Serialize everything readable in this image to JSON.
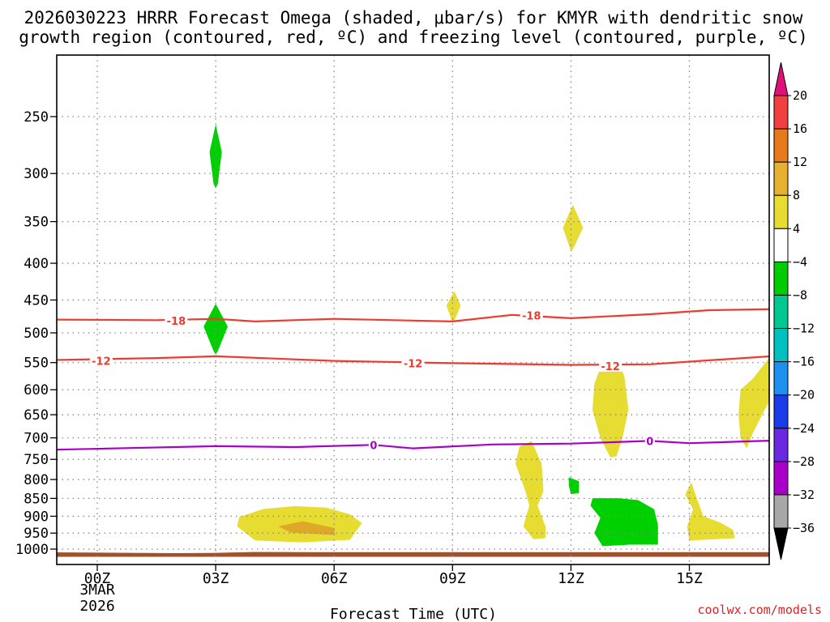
{
  "title_line1": "2026030223 HRRR Forecast Omega (shaded, μbar/s) for KMYR with dendritic snow",
  "title_line2": "growth region (contoured, red, ºC) and freezing level (contoured, purple, ºC)",
  "xaxis_label": "Forecast Time (UTC)",
  "watermark": "coolwx.com/models",
  "date_line1": "3MAR",
  "date_line2": "2026",
  "chart_data": {
    "type": "time-height cross-section",
    "x_range_hours": [
      -1.5,
      17.5
    ],
    "y_range_hPa": [
      175,
      1025
    ],
    "x_ticks": [
      {
        "h": 0,
        "label": "00Z"
      },
      {
        "h": 3,
        "label": "03Z"
      },
      {
        "h": 6,
        "label": "06Z"
      },
      {
        "h": 9,
        "label": "09Z"
      },
      {
        "h": 12,
        "label": "12Z"
      },
      {
        "h": 15,
        "label": "15Z"
      }
    ],
    "y_ticks": [
      {
        "p": 250,
        "label": "250"
      },
      {
        "p": 300,
        "label": "300"
      },
      {
        "p": 350,
        "label": "350"
      },
      {
        "p": 400,
        "label": "400"
      },
      {
        "p": 450,
        "label": "450"
      },
      {
        "p": 500,
        "label": "500"
      },
      {
        "p": 550,
        "label": "550"
      },
      {
        "p": 600,
        "label": "600"
      },
      {
        "p": 650,
        "label": "650"
      },
      {
        "p": 700,
        "label": "700"
      },
      {
        "p": 750,
        "label": "750"
      },
      {
        "p": 800,
        "label": "800"
      },
      {
        "p": 850,
        "label": "850"
      },
      {
        "p": 900,
        "label": "900"
      },
      {
        "p": 950,
        "label": "950"
      },
      {
        "p": 1000,
        "label": "1000"
      }
    ],
    "contours": [
      {
        "name": "contour-minus18",
        "value": "-18",
        "color": "#f03a2e",
        "points": [
          [
            -1.5,
            479
          ],
          [
            1.5,
            480
          ],
          [
            3,
            478
          ],
          [
            4,
            482
          ],
          [
            6,
            478
          ],
          [
            9,
            482
          ],
          [
            10.5,
            472
          ],
          [
            12,
            477
          ],
          [
            14,
            471
          ],
          [
            15.5,
            465
          ],
          [
            17.5,
            463
          ]
        ],
        "labels": [
          {
            "h": 2,
            "p": 481,
            "text": "-18"
          },
          {
            "h": 11,
            "p": 473,
            "text": "-18"
          }
        ]
      },
      {
        "name": "contour-minus12",
        "value": "-12",
        "color": "#f03a2e",
        "points": [
          [
            -1.5,
            546
          ],
          [
            1.5,
            542
          ],
          [
            3,
            539
          ],
          [
            6,
            547
          ],
          [
            9,
            551
          ],
          [
            12,
            554
          ],
          [
            14,
            553
          ],
          [
            15.5,
            546
          ],
          [
            17.5,
            537
          ]
        ],
        "labels": [
          {
            "h": 0.1,
            "p": 547,
            "text": "-12"
          },
          {
            "h": 8,
            "p": 551,
            "text": "-12"
          },
          {
            "h": 13,
            "p": 556,
            "text": "-12"
          }
        ]
      },
      {
        "name": "contour-zero",
        "value": "0",
        "color": "#a800c8",
        "points": [
          [
            -1.5,
            728
          ],
          [
            3,
            719
          ],
          [
            5,
            721
          ],
          [
            7,
            716
          ],
          [
            8,
            724
          ],
          [
            10,
            715
          ],
          [
            12,
            713
          ],
          [
            14,
            707
          ],
          [
            15,
            712
          ],
          [
            17.5,
            705
          ]
        ],
        "labels": [
          {
            "h": 7,
            "p": 716,
            "text": "0"
          },
          {
            "h": 14,
            "p": 707,
            "text": "0"
          }
        ]
      }
    ],
    "shaded_regions": [
      {
        "name": "omega-green-03z-upper",
        "color": "#00d000",
        "poly": [
          [
            3,
            257
          ],
          [
            3.15,
            280
          ],
          [
            3.05,
            310
          ],
          [
            3,
            314
          ],
          [
            2.95,
            310
          ],
          [
            2.85,
            280
          ]
        ]
      },
      {
        "name": "omega-green-03z-mid",
        "color": "#00d000",
        "poly": [
          [
            3,
            456
          ],
          [
            3.3,
            490
          ],
          [
            3.05,
            530
          ],
          [
            3,
            535
          ],
          [
            2.95,
            530
          ],
          [
            2.7,
            490
          ]
        ]
      },
      {
        "name": "omega-yellow-12z-upper",
        "color": "#e6dc32",
        "poly": [
          [
            12.05,
            332
          ],
          [
            12.3,
            357
          ],
          [
            12.05,
            382
          ],
          [
            12,
            384
          ],
          [
            11.8,
            357
          ]
        ]
      },
      {
        "name": "omega-yellow-09z",
        "color": "#e6dc32",
        "poly": [
          [
            9.05,
            438
          ],
          [
            9.2,
            458
          ],
          [
            9.05,
            480
          ],
          [
            9,
            483
          ],
          [
            8.85,
            458
          ]
        ]
      },
      {
        "name": "omega-yellow-1230z",
        "color": "#e6dc32",
        "poly": [
          [
            12.6,
            588
          ],
          [
            12.8,
            551
          ],
          [
            13.2,
            548
          ],
          [
            13.35,
            575
          ],
          [
            13.45,
            640
          ],
          [
            13.3,
            700
          ],
          [
            13.15,
            742
          ],
          [
            13.0,
            745
          ],
          [
            12.75,
            700
          ],
          [
            12.55,
            640
          ]
        ]
      },
      {
        "name": "omega-yellow-1630z",
        "color": "#e6dc32",
        "poly": [
          [
            17.5,
            430
          ],
          [
            17.5,
            570
          ],
          [
            17.2,
            600
          ],
          [
            16.9,
            640
          ],
          [
            16.6,
            690
          ],
          [
            16.45,
            723
          ],
          [
            16.3,
            700
          ],
          [
            16.25,
            650
          ],
          [
            16.3,
            600
          ],
          [
            16.6,
            580
          ],
          [
            17.05,
            540
          ],
          [
            17.3,
            500
          ]
        ]
      },
      {
        "name": "omega-yellow-11z",
        "color": "#e6dc32",
        "poly": [
          [
            11.0,
            708
          ],
          [
            11.25,
            760
          ],
          [
            11.3,
            830
          ],
          [
            11.15,
            870
          ],
          [
            11.35,
            930
          ],
          [
            11.35,
            965
          ],
          [
            11.05,
            968
          ],
          [
            10.8,
            930
          ],
          [
            10.95,
            870
          ],
          [
            10.85,
            830
          ],
          [
            10.6,
            760
          ],
          [
            10.7,
            720
          ]
        ]
      },
      {
        "name": "omega-green-12z-small",
        "color": "#00d000",
        "poly": [
          [
            11.95,
            795
          ],
          [
            12.2,
            805
          ],
          [
            12.2,
            835
          ],
          [
            12.0,
            838
          ],
          [
            11.95,
            815
          ]
        ]
      },
      {
        "name": "omega-green-13z",
        "color": "#00d000",
        "poly": [
          [
            12.55,
            850
          ],
          [
            13.2,
            850
          ],
          [
            13.7,
            855
          ],
          [
            14.1,
            880
          ],
          [
            14.2,
            925
          ],
          [
            14.2,
            985
          ],
          [
            13.5,
            985
          ],
          [
            12.8,
            990
          ],
          [
            12.6,
            950
          ],
          [
            12.75,
            905
          ],
          [
            12.5,
            870
          ]
        ]
      },
      {
        "name": "omega-yellow-15z",
        "color": "#e6dc32",
        "poly": [
          [
            15.05,
            808
          ],
          [
            15.15,
            840
          ],
          [
            15.35,
            900
          ],
          [
            15.8,
            920
          ],
          [
            16.1,
            940
          ],
          [
            16.15,
            965
          ],
          [
            15.0,
            972
          ],
          [
            14.95,
            930
          ],
          [
            15.1,
            880
          ],
          [
            14.9,
            840
          ]
        ]
      },
      {
        "name": "omega-green-17z",
        "color": "#00d000",
        "poly": [
          [
            17.5,
            868
          ],
          [
            17.5,
            1000
          ],
          [
            17.2,
            990
          ],
          [
            17.2,
            920
          ],
          [
            17.3,
            885
          ]
        ]
      },
      {
        "name": "omega-yellow-05z",
        "color": "#e6dc32",
        "poly": [
          [
            3.6,
            903
          ],
          [
            4.2,
            880
          ],
          [
            5.0,
            872
          ],
          [
            5.8,
            876
          ],
          [
            6.4,
            895
          ],
          [
            6.7,
            920
          ],
          [
            6.4,
            970
          ],
          [
            5.2,
            978
          ],
          [
            4.0,
            972
          ],
          [
            3.55,
            930
          ]
        ]
      },
      {
        "name": "omega-orange-05z",
        "color": "#e0a828",
        "poly": [
          [
            4.6,
            930
          ],
          [
            5.2,
            915
          ],
          [
            6.0,
            935
          ],
          [
            6.0,
            955
          ],
          [
            4.9,
            948
          ]
        ]
      }
    ],
    "terrain": {
      "color": "#a0522d",
      "poly": [
        [
          -1.5,
          1010
        ],
        [
          2,
          1013
        ],
        [
          3,
          1012
        ],
        [
          4,
          1009
        ],
        [
          6,
          1010
        ],
        [
          17.5,
          1010
        ],
        [
          17.5,
          1025
        ],
        [
          -1.5,
          1025
        ]
      ]
    },
    "colorbar": {
      "title": "Omega (μbar/s)",
      "boxes": [
        {
          "color": "#f04040"
        },
        {
          "color": "#e87a1e"
        },
        {
          "color": "#e8b030"
        },
        {
          "color": "#e6dc32"
        },
        {
          "color": "#ffffff"
        },
        {
          "color": "#00cc00"
        },
        {
          "color": "#00c890"
        },
        {
          "color": "#00c0c0"
        },
        {
          "color": "#1e90f0"
        },
        {
          "color": "#1a3ce8"
        },
        {
          "color": "#6a28e0"
        },
        {
          "color": "#a800c8"
        },
        {
          "color": "#a8a8a8"
        }
      ],
      "top_arrow_color": "#e0107a",
      "bottom_arrow_color": "#000000",
      "labels": [
        "20",
        "16",
        "12",
        "8",
        "4",
        "−4",
        "−8",
        "−12",
        "−16",
        "−20",
        "−24",
        "−28",
        "−32",
        "−36"
      ]
    }
  }
}
